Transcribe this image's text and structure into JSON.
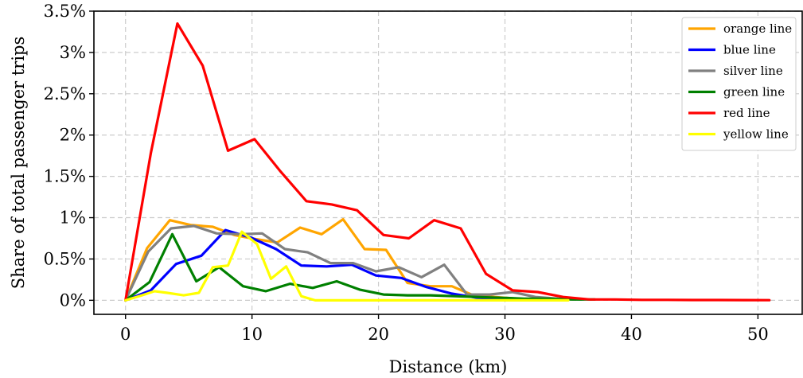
{
  "chart_data": {
    "type": "line",
    "title": "",
    "xlabel": "Distance (km)",
    "ylabel": "Share of total passenger trips",
    "xlim": [
      -2.5,
      53.5
    ],
    "ylim": [
      -0.17,
      3.5
    ],
    "xticks": [
      0,
      10,
      20,
      30,
      40,
      50
    ],
    "xtick_labels": [
      "0",
      "10",
      "20",
      "30",
      "40",
      "50"
    ],
    "yticks": [
      0,
      0.5,
      1,
      1.5,
      2,
      2.5,
      3,
      3.5
    ],
    "ytick_labels": [
      "0%",
      "0.5%",
      "1%",
      "1.5%",
      "2%",
      "2.5%",
      "3%",
      "3.5%"
    ],
    "grid": true,
    "legend_position": "top-right",
    "series": [
      {
        "name": "orange line",
        "color": "#ffa500",
        "x": [
          0,
          1.7,
          3.5,
          5.2,
          6.9,
          8.6,
          10.3,
          12.0,
          13.8,
          15.5,
          17.2,
          18.9,
          20.6,
          22.3,
          24.1,
          25.8,
          27.5,
          29.2,
          30.9
        ],
        "y": [
          0,
          0.63,
          0.97,
          0.91,
          0.89,
          0.79,
          0.74,
          0.7,
          0.88,
          0.8,
          0.98,
          0.62,
          0.61,
          0.21,
          0.17,
          0.17,
          0.06,
          0.04,
          0.02
        ]
      },
      {
        "name": "blue line",
        "color": "#0000ff",
        "x": [
          0,
          2.0,
          4.0,
          6.0,
          7.9,
          9.9,
          11.9,
          13.9,
          15.9,
          17.9,
          19.8,
          21.8,
          23.8,
          25.8,
          27.8,
          29.8,
          31.7
        ],
        "y": [
          0,
          0.12,
          0.44,
          0.54,
          0.85,
          0.76,
          0.62,
          0.42,
          0.41,
          0.43,
          0.3,
          0.27,
          0.16,
          0.08,
          0.03,
          0.02,
          0.01
        ]
      },
      {
        "name": "silver line",
        "color": "#808080",
        "x": [
          0,
          1.8,
          3.6,
          5.4,
          7.2,
          9.0,
          10.8,
          12.6,
          14.4,
          16.2,
          18.0,
          19.8,
          21.6,
          23.4,
          25.2,
          27.0,
          28.8,
          30.6,
          32.4,
          34.2,
          36.0
        ],
        "y": [
          0,
          0.59,
          0.87,
          0.9,
          0.81,
          0.8,
          0.81,
          0.62,
          0.58,
          0.45,
          0.45,
          0.35,
          0.4,
          0.28,
          0.43,
          0.07,
          0.07,
          0.1,
          0.04,
          0.02,
          0.01
        ]
      },
      {
        "name": "green line",
        "color": "#008000",
        "x": [
          0,
          1.9,
          3.7,
          5.6,
          7.4,
          9.3,
          11.1,
          13.0,
          14.8,
          16.7,
          18.5,
          20.4,
          22.3,
          24.1,
          26.0,
          27.8,
          29.7,
          31.5,
          33.4,
          35.2,
          37.1
        ],
        "y": [
          0,
          0.22,
          0.8,
          0.23,
          0.4,
          0.17,
          0.11,
          0.2,
          0.15,
          0.23,
          0.13,
          0.07,
          0.06,
          0.06,
          0.05,
          0.04,
          0.03,
          0.02,
          0.02,
          0.01,
          0.01
        ]
      },
      {
        "name": "red line",
        "color": "#ff0000",
        "x": [
          0,
          2.0,
          4.1,
          6.1,
          8.1,
          10.2,
          12.2,
          14.3,
          16.3,
          18.3,
          20.4,
          22.4,
          24.4,
          26.5,
          28.5,
          30.6,
          32.6,
          34.6,
          36.7,
          38.7,
          40.8,
          42.8,
          44.8,
          46.9,
          48.9,
          50.9
        ],
        "y": [
          0,
          1.78,
          3.35,
          2.84,
          1.81,
          1.95,
          1.57,
          1.2,
          1.16,
          1.09,
          0.79,
          0.75,
          0.97,
          0.87,
          0.32,
          0.12,
          0.1,
          0.04,
          0.01,
          0.01,
          0.005,
          0.005,
          0.003,
          0.003,
          0.002,
          0.001
        ]
      },
      {
        "name": "yellow line",
        "color": "#ffff00",
        "x": [
          0,
          1.3,
          2.3,
          3.3,
          4.6,
          5.8,
          6.9,
          8.1,
          9.2,
          10.4,
          11.5,
          12.7,
          13.9,
          15.0,
          17.0,
          20.0,
          25.0,
          30.0,
          35.0
        ],
        "y": [
          0,
          0.06,
          0.11,
          0.09,
          0.06,
          0.09,
          0.4,
          0.42,
          0.83,
          0.68,
          0.26,
          0.41,
          0.05,
          0.0,
          0.0,
          0.0,
          0.0,
          0.0,
          0.0
        ]
      }
    ]
  }
}
